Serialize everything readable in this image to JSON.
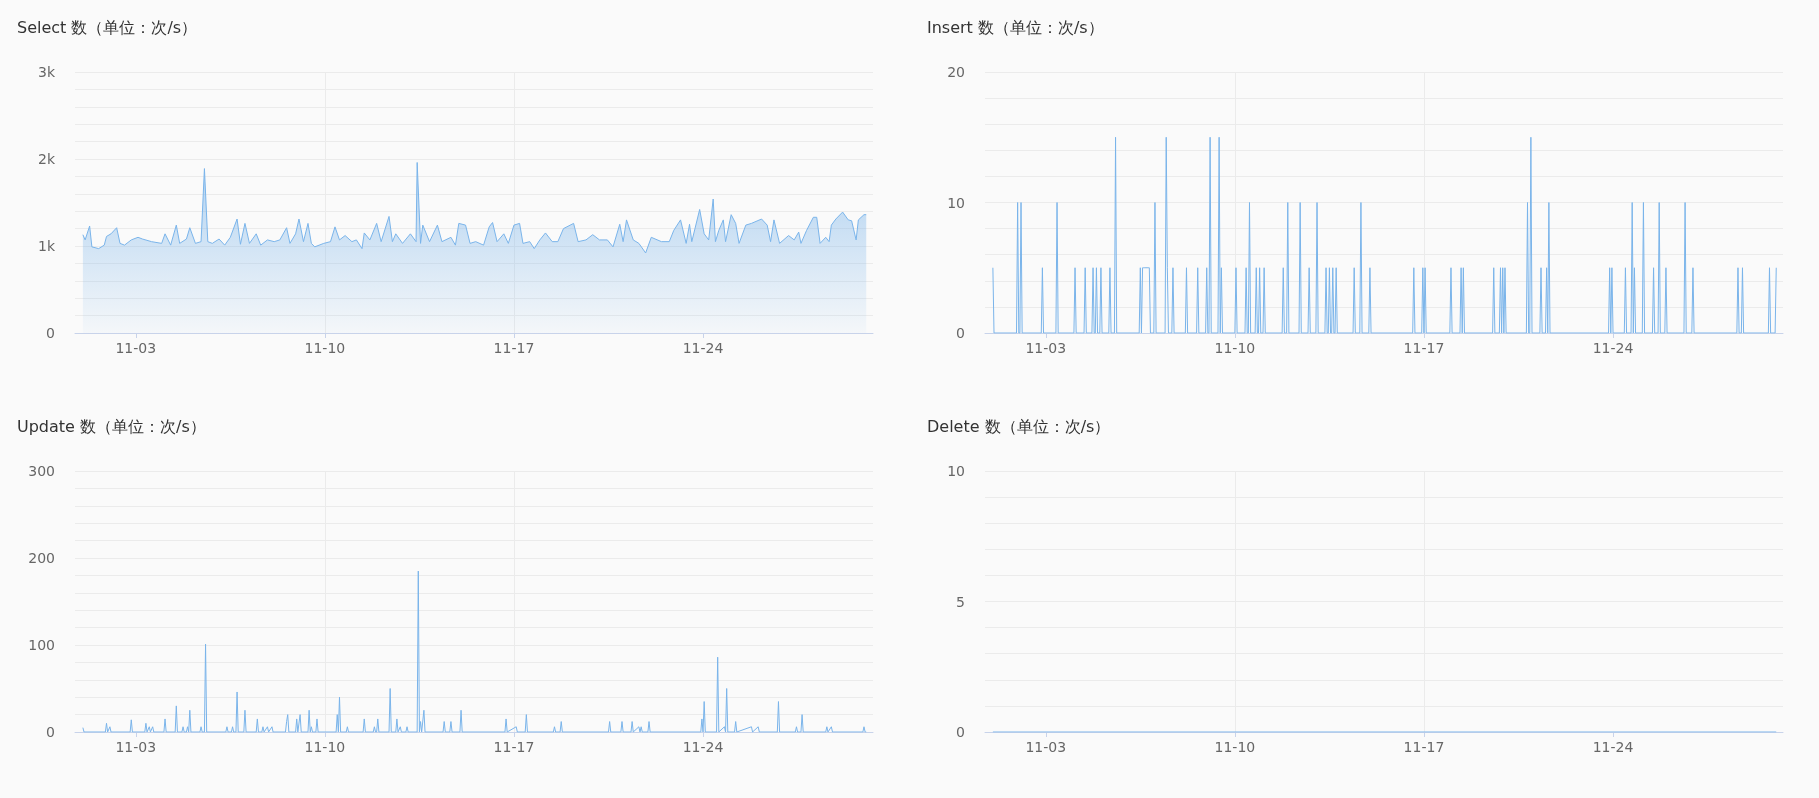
{
  "chart_data": [
    {
      "type": "area",
      "title": "Select 数（单位：次/s）",
      "color": "#7ab4ea",
      "grid": true,
      "xlim": [
        "--10-31T18:00",
        "--11-30T07:00"
      ],
      "xticks": [
        {
          "value": "--11-03",
          "label": "11-03"
        },
        {
          "value": "--11-10",
          "label": "11-10"
        },
        {
          "value": "--11-17",
          "label": "11-17"
        },
        {
          "value": "--11-24",
          "label": "11-24"
        }
      ],
      "ylim": [
        0,
        3000
      ],
      "yticks": [
        0,
        {
          "value": 200,
          "label": null
        },
        {
          "value": 400,
          "label": null
        },
        {
          "value": 600,
          "label": null
        },
        {
          "value": 800,
          "label": null
        },
        {
          "value": 1000,
          "label": "1k"
        },
        {
          "value": 1200,
          "label": null
        },
        {
          "value": 1400,
          "label": null
        },
        {
          "value": 1600,
          "label": null
        },
        {
          "value": 1800,
          "label": null
        },
        {
          "value": 2000,
          "label": "2k"
        },
        {
          "value": 2200,
          "label": null
        },
        {
          "value": 2400,
          "label": null
        },
        {
          "value": 2600,
          "label": null
        },
        {
          "value": 2800,
          "label": null
        },
        {
          "value": 3000,
          "label": "3k"
        }
      ],
      "x": [
        "--11-01T01:00",
        "--11-01T03:00",
        "--11-01T07:00",
        "--11-01T09:00",
        "--11-01T15:00",
        "--11-01T20:00",
        "--11-01T22:00",
        "--11-02T02:00",
        "--11-02T07:00",
        "--11-02T10:00",
        "--11-02T14:00",
        "--11-02T20:00",
        "--11-03T02:00",
        "--11-03T06:00",
        "--11-03T14:00",
        "--11-03T23:00",
        "--11-04T02:00",
        "--11-04T07:00",
        "--11-04T12:00",
        "--11-04T15:00",
        "--11-04T21:00",
        "--11-05T00:00",
        "--11-05T05:00",
        "--11-05T10:00",
        "--11-05T13:00",
        "--11-05T16:00",
        "--11-05T20:00",
        "--11-06T02:00",
        "--11-06T07:00",
        "--11-06T12:00",
        "--11-06T18:00",
        "--11-06T21:00",
        "--11-07T01:00",
        "--11-07T05:00",
        "--11-07T11:00",
        "--11-07T15:00",
        "--11-07T21:00",
        "--11-08T03:00",
        "--11-08T08:00",
        "--11-08T14:00",
        "--11-08T17:00",
        "--11-08T22:00",
        "--11-09T01:00",
        "--11-09T05:00",
        "--11-09T09:00",
        "--11-09T12:00",
        "--11-09T15:00",
        "--11-09T23:00",
        "--11-10T05:00",
        "--11-10T09:00",
        "--11-10T13:00",
        "--11-10T18:00",
        "--11-11T00:00",
        "--11-11T04:00",
        "--11-11T09:00",
        "--11-11T11:00",
        "--11-11T16:00",
        "--11-11T22:00",
        "--11-12T02:00",
        "--11-12T09:00",
        "--11-12T12:00",
        "--11-12T15:00",
        "--11-12T21:00",
        "--11-13T04:00",
        "--11-13T09:00",
        "--11-13T10:00",
        "--11-13T13:00",
        "--11-13T15:00",
        "--11-13T21:00",
        "--11-14T04:00",
        "--11-14T08:00",
        "--11-14T16:00",
        "--11-14T20:00",
        "--11-14T23:00",
        "--11-15T05:00",
        "--11-15T09:00",
        "--11-15T14:00",
        "--11-15T21:00",
        "--11-16T02:00",
        "--11-16T05:00",
        "--11-16T09:00",
        "--11-16T15:00",
        "--11-16T19:00",
        "--11-17T00:00",
        "--11-17T05:00",
        "--11-17T08:00",
        "--11-17T14:00",
        "--11-17T18:00",
        "--11-17T23:00",
        "--11-18T04:00",
        "--11-18T10:00",
        "--11-18T15:00",
        "--11-18T20:00",
        "--11-19T05:00",
        "--11-19T09:00",
        "--11-19T16:00",
        "--11-19T22:00",
        "--11-20T04:00",
        "--11-20T11:00",
        "--11-20T16:00",
        "--11-20T22:00",
        "--11-21T01:00",
        "--11-21T04:00",
        "--11-21T10:00",
        "--11-21T15:00",
        "--11-21T21:00",
        "--11-22T02:00",
        "--11-22T11:00",
        "--11-22T18:00",
        "--11-22T22:00",
        "--11-23T04:00",
        "--11-23T09:00",
        "--11-23T12:00",
        "--11-23T14:00",
        "--11-23T21:00",
        "--11-24T01:00",
        "--11-24T05:00",
        "--11-24T09:00",
        "--11-24T11:00",
        "--11-24T14:00",
        "--11-24T18:00",
        "--11-24T20:00",
        "--11-25T01:00",
        "--11-25T05:00",
        "--11-25T08:00",
        "--11-25T14:00",
        "--11-25T19:00",
        "--11-26T04:00",
        "--11-26T09:00",
        "--11-26T12:00",
        "--11-26T15:00",
        "--11-26T20:00",
        "--11-27T04:00",
        "--11-27T09:00",
        "--11-27T13:00",
        "--11-27T15:00",
        "--11-27T20:00",
        "--11-28T02:00",
        "--11-28T05:00",
        "--11-28T08:00",
        "--11-28T13:00",
        "--11-28T16:00",
        "--11-28T18:00",
        "--11-28T22:00",
        "--11-29T04:00",
        "--11-29T09:00",
        "--11-29T12:00",
        "--11-29T16:00",
        "--11-29T18:00",
        "--11-29T23:00",
        "--11-30T01:00"
      ],
      "values": [
        1130,
        1070,
        1230,
        990,
        970,
        1010,
        1110,
        1140,
        1210,
        1030,
        1010,
        1070,
        1100,
        1080,
        1050,
        1030,
        1140,
        1010,
        1240,
        1030,
        1080,
        1210,
        1030,
        1050,
        1890,
        1050,
        1030,
        1080,
        1010,
        1100,
        1310,
        1020,
        1260,
        1030,
        1140,
        1010,
        1070,
        1050,
        1070,
        1210,
        1030,
        1140,
        1310,
        1050,
        1260,
        1030,
        990,
        1030,
        1050,
        1220,
        1070,
        1120,
        1050,
        1070,
        970,
        1150,
        1070,
        1260,
        1050,
        1340,
        1050,
        1140,
        1030,
        1140,
        1050,
        1960,
        1030,
        1240,
        1050,
        1240,
        1050,
        1100,
        1010,
        1260,
        1240,
        1030,
        1050,
        1010,
        1220,
        1270,
        1050,
        1140,
        1030,
        1240,
        1260,
        1030,
        1050,
        970,
        1070,
        1150,
        1050,
        1050,
        1200,
        1260,
        1050,
        1070,
        1130,
        1070,
        1070,
        990,
        1250,
        1050,
        1300,
        1070,
        1030,
        920,
        1100,
        1050,
        1050,
        1180,
        1300,
        1030,
        1250,
        1050,
        1420,
        1140,
        1070,
        1540,
        1050,
        1180,
        1300,
        1050,
        1360,
        1260,
        1030,
        1240,
        1260,
        1310,
        1240,
        1050,
        1300,
        1030,
        1120,
        1070,
        1160,
        1030,
        1180,
        1330,
        1330,
        1030,
        1100,
        1050,
        1240,
        1310,
        1390,
        1300,
        1290,
        1070,
        1300,
        1360,
        1360
      ]
    },
    {
      "type": "line",
      "title": "Insert 数（单位：次/s）",
      "color": "#7ab4ea",
      "grid": true,
      "xlim": [
        "--10-31T18:00",
        "--11-30T07:00"
      ],
      "xticks": [
        {
          "value": "--11-03",
          "label": "11-03"
        },
        {
          "value": "--11-10",
          "label": "11-10"
        },
        {
          "value": "--11-17",
          "label": "11-17"
        },
        {
          "value": "--11-24",
          "label": "11-24"
        }
      ],
      "ylim": [
        0,
        20
      ],
      "yticks": [
        0,
        {
          "value": 2,
          "label": null
        },
        {
          "value": 4,
          "label": null
        },
        {
          "value": 6,
          "label": null
        },
        {
          "value": 8,
          "label": null
        },
        10,
        {
          "value": 12,
          "label": null
        },
        {
          "value": 14,
          "label": null
        },
        {
          "value": 16,
          "label": null
        },
        {
          "value": 18,
          "label": null
        },
        20
      ],
      "x": [
        "--11-01T01:00",
        "--11-01T02:00",
        "--11-01T22:00",
        "--11-01T23:00",
        "--11-02T00:00",
        "--11-02T01:00",
        "--11-02T02:00",
        "--11-02T03:00",
        "--11-02T20:00",
        "--11-02T21:00",
        "--11-02T22:00",
        "--11-03T09:00",
        "--11-03T10:00",
        "--11-03T11:00",
        "--11-04T01:00",
        "--11-04T02:00",
        "--11-04T03:00",
        "--11-04T10:00",
        "--11-04T11:00",
        "--11-04T12:00",
        "--11-04T17:00",
        "--11-04T18:00",
        "--11-04T19:00",
        "--11-04T20:00",
        "--11-04T21:00",
        "--11-04T22:00",
        "--11-05T00:00",
        "--11-05T01:00",
        "--11-05T02:00",
        "--11-05T08:00",
        "--11-05T09:00",
        "--11-05T10:00",
        "--11-05T13:00",
        "--11-05T14:00",
        "--11-05T15:00",
        "--11-06T11:00",
        "--11-06T12:00",
        "--11-06T13:00",
        "--11-06T14:00",
        "--11-06T15:00",
        "--11-06T16:00",
        "--11-06T17:00",
        "--11-06T18:00",
        "--11-06T19:00",
        "--11-06T20:00",
        "--11-06T21:00",
        "--11-07T00:00",
        "--11-07T01:00",
        "--11-07T02:00",
        "--11-07T10:00",
        "--11-07T11:00",
        "--11-07T12:00",
        "--11-07T13:00",
        "--11-07T16:00",
        "--11-07T17:00",
        "--11-07T18:00",
        "--11-08T04:00",
        "--11-08T05:00",
        "--11-08T06:00",
        "--11-08T14:00",
        "--11-08T15:00",
        "--11-08T16:00",
        "--11-08T22:00",
        "--11-08T23:00",
        "--11-09T00:00",
        "--11-09T01:00",
        "--11-09T02:00",
        "--11-09T03:00",
        "--11-09T09:00",
        "--11-09T10:00",
        "--11-09T11:00",
        "--11-09T12:00",
        "--11-09T13:00",
        "--11-10T00:00",
        "--11-10T01:00",
        "--11-10T02:00",
        "--11-10T09:00",
        "--11-10T10:00",
        "--11-10T11:00",
        "--11-10T12:00",
        "--11-10T13:00",
        "--11-10T14:00",
        "--11-10T18:00",
        "--11-10T19:00",
        "--11-10T20:00",
        "--11-10T21:00",
        "--11-10T22:00",
        "--11-10T23:00",
        "--11-11T01:00",
        "--11-11T02:00",
        "--11-11T03:00",
        "--11-11T18:00",
        "--11-11T19:00",
        "--11-11T20:00",
        "--11-11T22:00",
        "--11-11T23:00",
        "--11-12T00:00",
        "--11-12T09:00",
        "--11-12T10:00",
        "--11-12T11:00",
        "--11-12T17:00",
        "--11-12T18:00",
        "--11-12T19:00",
        "--11-13T00:00",
        "--11-13T01:00",
        "--11-13T02:00",
        "--11-13T08:00",
        "--11-13T09:00",
        "--11-13T10:00",
        "--11-13T11:00",
        "--11-13T12:00",
        "--11-13T13:00",
        "--11-13T14:00",
        "--11-13T15:00",
        "--11-13T16:00",
        "--11-13T17:00",
        "--11-13T18:00",
        "--11-13T19:00",
        "--11-14T09:00",
        "--11-14T10:00",
        "--11-14T11:00",
        "--11-14T15:00",
        "--11-14T16:00",
        "--11-14T17:00",
        "--11-14T23:00",
        "--11-15T00:00",
        "--11-15T01:00",
        "--11-16T14:00",
        "--11-16T15:00",
        "--11-16T16:00",
        "--11-16T22:00",
        "--11-16T23:00",
        "--11-17T00:00",
        "--11-17T01:00",
        "--11-17T02:00",
        "--11-17T23:00",
        "--11-18T00:00",
        "--11-18T01:00",
        "--11-18T08:00",
        "--11-18T09:00",
        "--11-18T10:00",
        "--11-18T11:00",
        "--11-18T12:00",
        "--11-19T13:00",
        "--11-19T14:00",
        "--11-19T15:00",
        "--11-19T19:00",
        "--11-19T20:00",
        "--11-19T21:00",
        "--11-19T22:00",
        "--11-19T23:00",
        "--11-20T00:00",
        "--11-20T01:00",
        "--11-20T19:00",
        "--11-20T20:00",
        "--11-20T21:00",
        "--11-20T22:00",
        "--11-20T23:00",
        "--11-21T00:00",
        "--11-21T07:00",
        "--11-21T08:00",
        "--11-21T09:00",
        "--11-21T12:00",
        "--11-21T13:00",
        "--11-21T14:00",
        "--11-21T15:00",
        "--11-21T16:00",
        "--11-23T20:00",
        "--11-23T21:00",
        "--11-23T22:00",
        "--11-23T23:00",
        "--11-24T00:00",
        "--11-24T10:00",
        "--11-24T11:00",
        "--11-24T12:00",
        "--11-24T16:00",
        "--11-24T17:00",
        "--11-24T18:00",
        "--11-24T19:00",
        "--11-24T20:00",
        "--11-25T02:00",
        "--11-25T03:00",
        "--11-25T04:00",
        "--11-25T11:00",
        "--11-25T12:00",
        "--11-25T13:00",
        "--11-25T16:00",
        "--11-25T17:00",
        "--11-25T18:00",
        "--11-25T22:00",
        "--11-25T23:00",
        "--11-26T00:00",
        "--11-26T15:00",
        "--11-26T16:00",
        "--11-26T17:00",
        "--11-26T22:00",
        "--11-26T23:00",
        "--11-27T00:00",
        "--11-28T14:00",
        "--11-28T15:00",
        "--11-28T16:00",
        "--11-28T18:00",
        "--11-28T19:00",
        "--11-28T20:00",
        "--11-29T18:00",
        "--11-29T19:00",
        "--11-29T20:00",
        "--11-30T00:00",
        "--11-30T01:00"
      ],
      "values": [
        5,
        0,
        0,
        10,
        0,
        0,
        10,
        0,
        0,
        5,
        0,
        0,
        10,
        0,
        0,
        5,
        0,
        0,
        5,
        0,
        0,
        5,
        0,
        0,
        5,
        0,
        0,
        5,
        0,
        0,
        5,
        0,
        0,
        15,
        0,
        0,
        5,
        0,
        5,
        5,
        5,
        5,
        5,
        5,
        5,
        0,
        0,
        10,
        0,
        0,
        15,
        5,
        0,
        0,
        5,
        0,
        0,
        5,
        0,
        0,
        5,
        0,
        0,
        5,
        0,
        0,
        15,
        0,
        0,
        15,
        0,
        5,
        0,
        0,
        5,
        0,
        0,
        5,
        0,
        0,
        10,
        0,
        0,
        5,
        0,
        0,
        5,
        0,
        0,
        5,
        0,
        0,
        5,
        0,
        0,
        10,
        0,
        0,
        10,
        0,
        0,
        5,
        0,
        0,
        10,
        0,
        0,
        5,
        0,
        0,
        5,
        0,
        0,
        5,
        0,
        0,
        5,
        0,
        0,
        5,
        0,
        0,
        10,
        0,
        0,
        5,
        0,
        0,
        5,
        0,
        0,
        5,
        0,
        5,
        0,
        0,
        5,
        0,
        0,
        5,
        0,
        5,
        0,
        0,
        5,
        0,
        0,
        5,
        0,
        5,
        0,
        5,
        0,
        0,
        10,
        0,
        0,
        15,
        0,
        0,
        5,
        0,
        0,
        5,
        0,
        10,
        0,
        0,
        5,
        0,
        5,
        0,
        0,
        5,
        0,
        0,
        10,
        0,
        5,
        0,
        0,
        10,
        0,
        0,
        5,
        0,
        0,
        10,
        0,
        0,
        5,
        0,
        0,
        10,
        0,
        0,
        5,
        0,
        0,
        5,
        0,
        0,
        5,
        0,
        0,
        5,
        0,
        0,
        5
      ]
    },
    {
      "type": "line",
      "title": "Update 数（单位：次/s）",
      "color": "#7ab4ea",
      "grid": true,
      "xlim": [
        "--10-31T18:00",
        "--11-30T07:00"
      ],
      "xticks": [
        {
          "value": "--11-03",
          "label": "11-03"
        },
        {
          "value": "--11-10",
          "label": "11-10"
        },
        {
          "value": "--11-17",
          "label": "11-17"
        },
        {
          "value": "--11-24",
          "label": "11-24"
        }
      ],
      "ylim": [
        0,
        300
      ],
      "yticks": [
        0,
        {
          "value": 20,
          "label": null
        },
        {
          "value": 40,
          "label": null
        },
        {
          "value": 60,
          "label": null
        },
        {
          "value": 80,
          "label": null
        },
        100,
        {
          "value": 120,
          "label": null
        },
        {
          "value": 140,
          "label": null
        },
        {
          "value": 160,
          "label": null
        },
        {
          "value": 180,
          "label": null
        },
        200,
        {
          "value": 220,
          "label": null
        },
        {
          "value": 240,
          "label": null
        },
        {
          "value": 260,
          "label": null
        },
        {
          "value": 280,
          "label": null
        },
        300
      ],
      "x": [
        "--11-01T01:00",
        "--11-01T02:00",
        "--11-01T21:00",
        "--11-01T22:00",
        "--11-01T23:00",
        "--11-02T01:00",
        "--11-02T02:00",
        "--11-02T19:00",
        "--11-02T20:00",
        "--11-02T21:00",
        "--11-03T08:00",
        "--11-03T09:00",
        "--11-03T10:00",
        "--11-03T12:00",
        "--11-03T13:00",
        "--11-03T15:00",
        "--11-03T16:00",
        "--11-04T01:00",
        "--11-04T02:00",
        "--11-04T03:00",
        "--11-04T11:00",
        "--11-04T12:00",
        "--11-04T13:00",
        "--11-04T17:00",
        "--11-04T18:00",
        "--11-04T19:00",
        "--11-04T21:00",
        "--11-04T22:00",
        "--11-04T23:00",
        "--11-05T00:00",
        "--11-05T01:00",
        "--11-05T09:00",
        "--11-05T10:00",
        "--11-05T11:00",
        "--11-05T13:00",
        "--11-05T14:00",
        "--11-05T15:00",
        "--11-06T08:00",
        "--11-06T09:00",
        "--11-06T10:00",
        "--11-06T13:00",
        "--11-06T14:00",
        "--11-06T15:00",
        "--11-06T17:00",
        "--11-06T18:00",
        "--11-06T19:00",
        "--11-07T00:00",
        "--11-07T01:00",
        "--11-07T02:00",
        "--11-07T11:00",
        "--11-07T12:00",
        "--11-07T13:00",
        "--11-07T16:00",
        "--11-07T17:00",
        "--11-07T18:00",
        "--11-07T21:00",
        "--11-07T22:00",
        "--11-08T01:00",
        "--11-08T02:00",
        "--11-08T13:00",
        "--11-08T14:00",
        "--11-08T15:00",
        "--11-08T16:00",
        "--11-08T22:00",
        "--11-08T23:00",
        "--11-09T00:00",
        "--11-09T02:00",
        "--11-09T03:00",
        "--11-09T09:00",
        "--11-09T10:00",
        "--11-09T11:00",
        "--11-09T12:00",
        "--11-09T13:00",
        "--11-09T16:00",
        "--11-09T17:00",
        "--11-09T18:00",
        "--11-10T10:00",
        "--11-10T11:00",
        "--11-10T12:00",
        "--11-10T13:00",
        "--11-10T14:00",
        "--11-10T19:00",
        "--11-10T20:00",
        "--11-10T21:00",
        "--11-11T10:00",
        "--11-11T11:00",
        "--11-11T12:00",
        "--11-11T19:00",
        "--11-11T20:00",
        "--11-11T21:00",
        "--11-11T22:00",
        "--11-11T23:00",
        "--11-12T00:00",
        "--11-12T09:00",
        "--11-12T10:00",
        "--11-12T11:00",
        "--11-12T15:00",
        "--11-12T16:00",
        "--11-12T17:00",
        "--11-12T19:00",
        "--11-12T20:00",
        "--11-13T00:00",
        "--11-13T01:00",
        "--11-13T02:00",
        "--11-13T10:00",
        "--11-13T11:00",
        "--11-13T12:00",
        "--11-13T13:00",
        "--11-13T14:00",
        "--11-13T16:00",
        "--11-13T17:00",
        "--11-14T09:00",
        "--11-14T10:00",
        "--11-14T11:00",
        "--11-14T15:00",
        "--11-14T16:00",
        "--11-14T17:00",
        "--11-15T00:00",
        "--11-15T01:00",
        "--11-15T02:00",
        "--11-16T16:00",
        "--11-16T17:00",
        "--11-16T18:00",
        "--11-17T02:00",
        "--11-17T03:00",
        "--11-17T10:00",
        "--11-17T11:00",
        "--11-17T12:00",
        "--11-18T11:00",
        "--11-18T12:00",
        "--11-18T13:00",
        "--11-18T17:00",
        "--11-18T18:00",
        "--11-18T19:00",
        "--11-20T12:00",
        "--11-20T13:00",
        "--11-20T14:00",
        "--11-20T23:00",
        "--11-21T00:00",
        "--11-21T01:00",
        "--11-21T08:00",
        "--11-21T09:00",
        "--11-21T10:00",
        "--11-21T15:00",
        "--11-21T16:00",
        "--11-21T17:00",
        "--11-21T18:00",
        "--11-21T23:00",
        "--11-22T00:00",
        "--11-22T01:00",
        "--11-23T22:00",
        "--11-23T23:00",
        "--11-24T00:00",
        "--11-24T01:00",
        "--11-24T02:00",
        "--11-24T12:00",
        "--11-24T13:00",
        "--11-24T14:00",
        "--11-24T19:00",
        "--11-24T20:00",
        "--11-24T21:00",
        "--11-24T22:00",
        "--11-25T04:00",
        "--11-25T05:00",
        "--11-25T06:00",
        "--11-25T19:00",
        "--11-25T20:00",
        "--11-26T01:00",
        "--11-26T02:00",
        "--11-26T18:00",
        "--11-26T19:00",
        "--11-26T20:00",
        "--11-27T10:00",
        "--11-27T11:00",
        "--11-27T12:00",
        "--11-27T15:00",
        "--11-27T16:00",
        "--11-27T17:00",
        "--11-28T13:00",
        "--11-28T14:00",
        "--11-28T15:00",
        "--11-28T18:00",
        "--11-28T19:00",
        "--11-29T22:00",
        "--11-29T23:00",
        "--11-30T00:00",
        "--11-30T01:00"
      ],
      "values": [
        5,
        0,
        0,
        10,
        0,
        6,
        0,
        0,
        14,
        0,
        0,
        10,
        0,
        6,
        0,
        6,
        0,
        0,
        15,
        0,
        0,
        30,
        0,
        0,
        6,
        0,
        0,
        6,
        0,
        25,
        0,
        0,
        6,
        0,
        0,
        101,
        0,
        0,
        6,
        0,
        0,
        6,
        0,
        0,
        46,
        0,
        0,
        25,
        0,
        0,
        15,
        0,
        0,
        6,
        0,
        6,
        0,
        6,
        0,
        0,
        12,
        20,
        0,
        0,
        15,
        0,
        20,
        0,
        0,
        25,
        0,
        6,
        0,
        0,
        15,
        0,
        0,
        20,
        0,
        40,
        0,
        0,
        6,
        0,
        0,
        15,
        0,
        0,
        6,
        0,
        0,
        15,
        0,
        0,
        50,
        0,
        0,
        15,
        0,
        6,
        0,
        0,
        6,
        0,
        0,
        185,
        0,
        12,
        0,
        25,
        0,
        0,
        12,
        0,
        0,
        12,
        0,
        0,
        25,
        0,
        0,
        15,
        0,
        6,
        0,
        0,
        20,
        0,
        0,
        6,
        0,
        0,
        12,
        0,
        0,
        12,
        0,
        0,
        12,
        0,
        0,
        12,
        0,
        6,
        0,
        6,
        0,
        0,
        12,
        0,
        0,
        15,
        0,
        35,
        0,
        0,
        86,
        0,
        6,
        0,
        50,
        0,
        0,
        12,
        0,
        6,
        0,
        6,
        0,
        0,
        35,
        0,
        0,
        6,
        0,
        0,
        20,
        0,
        0,
        6,
        0,
        6,
        0,
        0,
        6,
        0,
        0
      ]
    },
    {
      "type": "line",
      "title": "Delete 数（单位：次/s）",
      "color": "#7ab4ea",
      "grid": true,
      "xlim": [
        "--10-31T18:00",
        "--11-30T07:00"
      ],
      "xticks": [
        {
          "value": "--11-03",
          "label": "11-03"
        },
        {
          "value": "--11-10",
          "label": "11-10"
        },
        {
          "value": "--11-17",
          "label": "11-17"
        },
        {
          "value": "--11-24",
          "label": "11-24"
        }
      ],
      "ylim": [
        0,
        10
      ],
      "yticks": [
        0,
        {
          "value": 1,
          "label": null
        },
        {
          "value": 2,
          "label": null
        },
        {
          "value": 3,
          "label": null
        },
        {
          "value": 4,
          "label": null
        },
        5,
        {
          "value": 6,
          "label": null
        },
        {
          "value": 7,
          "label": null
        },
        {
          "value": 8,
          "label": null
        },
        {
          "value": 9,
          "label": null
        },
        10
      ],
      "x": [
        "--11-01T01:00",
        "--11-30T01:00"
      ],
      "values": [
        0,
        0
      ]
    }
  ]
}
